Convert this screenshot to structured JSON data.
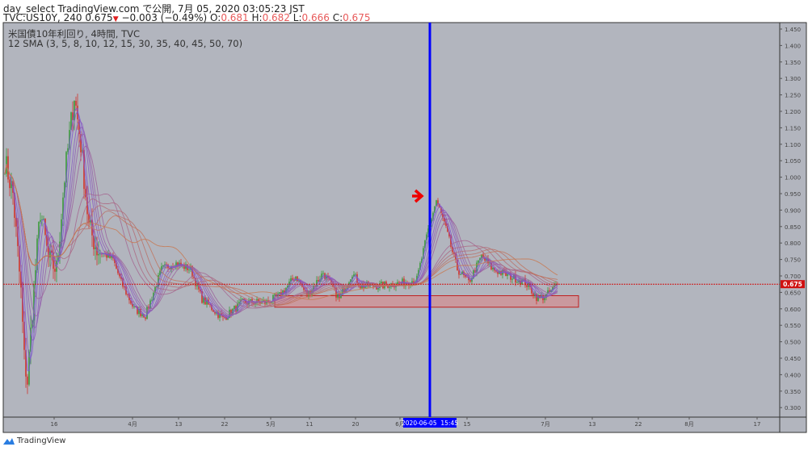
{
  "header": {
    "publish_line": "day_select TradingView.com で公開, 7月 05, 2020 03:05:23 JST",
    "symbol": "TVC:US10Y, 240",
    "last": "0.675",
    "change": "−0.003 (−0.49%)",
    "o_label": "O:",
    "o": "0.681",
    "h_label": "H:",
    "h": "0.682",
    "l_label": "L:",
    "l": "0.666",
    "c_label": "C:",
    "c": "0.675"
  },
  "legend": {
    "title": "米国債10年利回り, 4時間, TVC",
    "indicator": "12 SMA (3, 5, 8, 10, 12, 15, 30, 35, 40, 45, 50, 70)"
  },
  "footer": {
    "brand": "TradingView"
  },
  "colors": {
    "bg": "#b2b5be",
    "up": "#3a9a3a",
    "down": "#d0342c",
    "cursor": "#0000ff",
    "price_line": "#d01010"
  },
  "chart_data": {
    "type": "candlestick",
    "symbol": "US10Y",
    "y_ticks": [
      "1.450",
      "1.400",
      "1.350",
      "1.300",
      "1.250",
      "1.200",
      "1.150",
      "1.100",
      "1.050",
      "1.000",
      "0.950",
      "0.900",
      "0.850",
      "0.800",
      "0.750",
      "0.700",
      "0.650",
      "0.600",
      "0.550",
      "0.500",
      "0.450",
      "0.400",
      "0.350",
      "0.300"
    ],
    "ylim": [
      0.3,
      1.45
    ],
    "x_ticks": [
      "16",
      "4月",
      "13",
      "22",
      "5月",
      "11",
      "20",
      "6月",
      "15",
      "7月",
      "13",
      "22",
      "8月",
      "17"
    ],
    "last_price_label": "0.675",
    "last_price": 0.675,
    "cursor_label": "2020-06-05  15:45",
    "sma_periods": [
      3,
      5,
      8,
      10,
      12,
      15,
      30,
      35,
      40,
      45,
      50,
      70
    ],
    "support_zone": [
      0.605,
      0.64
    ],
    "path_waypoints": [
      [
        0,
        1.05
      ],
      [
        5,
        0.95
      ],
      [
        10,
        0.65
      ],
      [
        12,
        0.45
      ],
      [
        14,
        0.38
      ],
      [
        17,
        0.6
      ],
      [
        22,
        0.9
      ],
      [
        27,
        0.75
      ],
      [
        32,
        0.72
      ],
      [
        37,
        1.0
      ],
      [
        43,
        1.25
      ],
      [
        47,
        1.1
      ],
      [
        52,
        0.85
      ],
      [
        57,
        0.78
      ],
      [
        67,
        0.75
      ],
      [
        72,
        0.68
      ],
      [
        80,
        0.6
      ],
      [
        87,
        0.58
      ],
      [
        97,
        0.72
      ],
      [
        105,
        0.74
      ],
      [
        115,
        0.72
      ],
      [
        122,
        0.63
      ],
      [
        135,
        0.57
      ],
      [
        147,
        0.62
      ],
      [
        162,
        0.62
      ],
      [
        170,
        0.64
      ],
      [
        180,
        0.7
      ],
      [
        187,
        0.64
      ],
      [
        197,
        0.71
      ],
      [
        207,
        0.63
      ],
      [
        215,
        0.71
      ],
      [
        220,
        0.67
      ],
      [
        232,
        0.67
      ],
      [
        247,
        0.68
      ],
      [
        255,
        0.69
      ],
      [
        262,
        0.84
      ],
      [
        267,
        0.93
      ],
      [
        272,
        0.86
      ],
      [
        280,
        0.72
      ],
      [
        287,
        0.68
      ],
      [
        295,
        0.76
      ],
      [
        302,
        0.72
      ],
      [
        312,
        0.7
      ],
      [
        322,
        0.68
      ],
      [
        330,
        0.63
      ],
      [
        335,
        0.64
      ],
      [
        342,
        0.675
      ]
    ]
  }
}
